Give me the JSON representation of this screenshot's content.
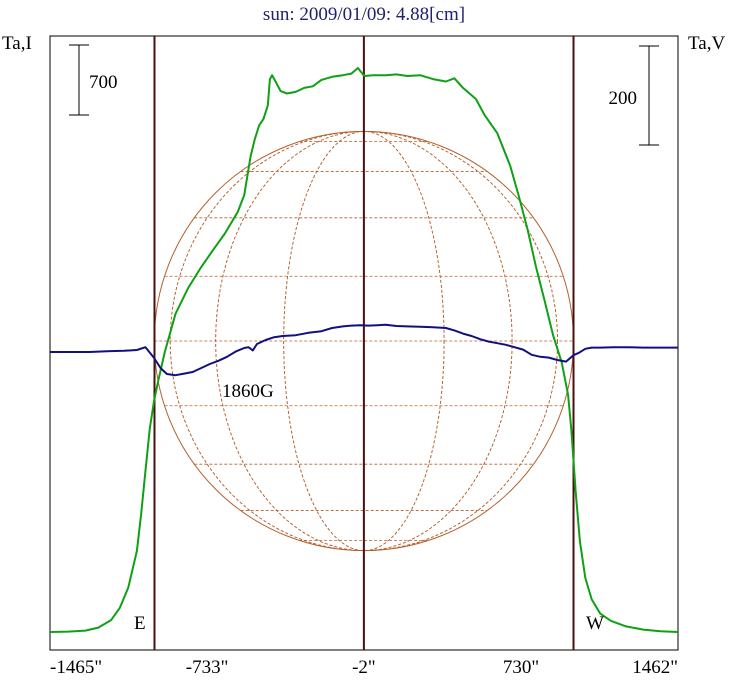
{
  "chart_data": {
    "type": "line",
    "title": "sun: 2009/01/09: 4.88[cm]",
    "ylabel_left": "Ta,I",
    "ylabel_right": "Ta,V",
    "scale_bar_left": "700",
    "scale_bar_right": "200",
    "x_ticks": [
      {
        "value": -1465,
        "label": "-1465\""
      },
      {
        "value": -733,
        "label": "-733\""
      },
      {
        "value": -2,
        "label": "-2\""
      },
      {
        "value": 730,
        "label": "730\""
      },
      {
        "value": 1462,
        "label": "1462\""
      }
    ],
    "xlim": [
      -1465,
      1462
    ],
    "limb_markers": [
      {
        "label": "E",
        "x": -978
      },
      {
        "label": "W",
        "x": 975
      }
    ],
    "center_line_x": -2,
    "annotation": "1860G",
    "disk_grid": {
      "radius_arcsec": 975,
      "meridians": 7,
      "parallels": 9
    },
    "series": [
      {
        "role": "intensity",
        "color": "#0fa015",
        "points": [
          [
            -1465,
            0
          ],
          [
            -1380,
            5
          ],
          [
            -1300,
            18
          ],
          [
            -1240,
            55
          ],
          [
            -1180,
            150
          ],
          [
            -1140,
            300
          ],
          [
            -1100,
            560
          ],
          [
            -1060,
            1020
          ],
          [
            -1040,
            1490
          ],
          [
            -1020,
            2030
          ],
          [
            -1000,
            2560
          ],
          [
            -980,
            2910
          ],
          [
            -960,
            3160
          ],
          [
            -930,
            3520
          ],
          [
            -880,
            4000
          ],
          [
            -820,
            4330
          ],
          [
            -760,
            4590
          ],
          [
            -700,
            4820
          ],
          [
            -650,
            5010
          ],
          [
            -590,
            5280
          ],
          [
            -560,
            5490
          ],
          [
            -530,
            5980
          ],
          [
            -510,
            6200
          ],
          [
            -490,
            6370
          ],
          [
            -470,
            6450
          ],
          [
            -450,
            6620
          ],
          [
            -440,
            6950
          ],
          [
            -430,
            7000
          ],
          [
            -410,
            6900
          ],
          [
            -390,
            6800
          ],
          [
            -360,
            6770
          ],
          [
            -320,
            6790
          ],
          [
            -280,
            6840
          ],
          [
            -240,
            6860
          ],
          [
            -200,
            6940
          ],
          [
            -150,
            6980
          ],
          [
            -100,
            7000
          ],
          [
            -60,
            7020
          ],
          [
            -30,
            7090
          ],
          [
            0,
            6990
          ],
          [
            40,
            7000
          ],
          [
            100,
            7000
          ],
          [
            150,
            7010
          ],
          [
            200,
            6990
          ],
          [
            260,
            7000
          ],
          [
            320,
            6950
          ],
          [
            380,
            6920
          ],
          [
            420,
            6960
          ],
          [
            460,
            6840
          ],
          [
            520,
            6700
          ],
          [
            560,
            6500
          ],
          [
            620,
            6270
          ],
          [
            680,
            5860
          ],
          [
            720,
            5480
          ],
          [
            760,
            5070
          ],
          [
            800,
            4590
          ],
          [
            840,
            4170
          ],
          [
            880,
            3730
          ],
          [
            920,
            3390
          ],
          [
            950,
            2980
          ],
          [
            965,
            2530
          ],
          [
            985,
            1760
          ],
          [
            1005,
            1140
          ],
          [
            1030,
            680
          ],
          [
            1060,
            410
          ],
          [
            1100,
            230
          ],
          [
            1150,
            140
          ],
          [
            1220,
            70
          ],
          [
            1300,
            30
          ],
          [
            1380,
            10
          ],
          [
            1462,
            0
          ]
        ]
      },
      {
        "role": "circular polarization",
        "color": "#101080",
        "points": [
          [
            -1465,
            0
          ],
          [
            -1280,
            0
          ],
          [
            -1200,
            2
          ],
          [
            -1120,
            3
          ],
          [
            -1060,
            5
          ],
          [
            -1020,
            12
          ],
          [
            -980,
            -15
          ],
          [
            -950,
            -40
          ],
          [
            -920,
            -55
          ],
          [
            -880,
            -58
          ],
          [
            -840,
            -54
          ],
          [
            -800,
            -50
          ],
          [
            -760,
            -40
          ],
          [
            -720,
            -30
          ],
          [
            -680,
            -22
          ],
          [
            -640,
            -12
          ],
          [
            -600,
            1
          ],
          [
            -560,
            10
          ],
          [
            -540,
            12
          ],
          [
            -520,
            4
          ],
          [
            -500,
            20
          ],
          [
            -460,
            30
          ],
          [
            -420,
            37
          ],
          [
            -380,
            40
          ],
          [
            -320,
            42
          ],
          [
            -260,
            48
          ],
          [
            -200,
            52
          ],
          [
            -150,
            60
          ],
          [
            -100,
            64
          ],
          [
            -60,
            66
          ],
          [
            -20,
            67
          ],
          [
            20,
            66
          ],
          [
            60,
            67
          ],
          [
            100,
            68
          ],
          [
            150,
            65
          ],
          [
            200,
            64
          ],
          [
            260,
            63
          ],
          [
            320,
            62
          ],
          [
            380,
            60
          ],
          [
            420,
            54
          ],
          [
            460,
            46
          ],
          [
            500,
            40
          ],
          [
            540,
            32
          ],
          [
            580,
            26
          ],
          [
            620,
            22
          ],
          [
            660,
            18
          ],
          [
            700,
            12
          ],
          [
            740,
            6
          ],
          [
            780,
            -7
          ],
          [
            820,
            -12
          ],
          [
            860,
            -14
          ],
          [
            900,
            -20
          ],
          [
            940,
            -24
          ],
          [
            975,
            -8
          ],
          [
            1000,
            -2
          ],
          [
            1030,
            8
          ],
          [
            1060,
            11
          ],
          [
            1100,
            11
          ],
          [
            1160,
            12
          ],
          [
            1220,
            12
          ],
          [
            1300,
            11
          ],
          [
            1380,
            11
          ],
          [
            1462,
            11
          ]
        ]
      }
    ]
  }
}
